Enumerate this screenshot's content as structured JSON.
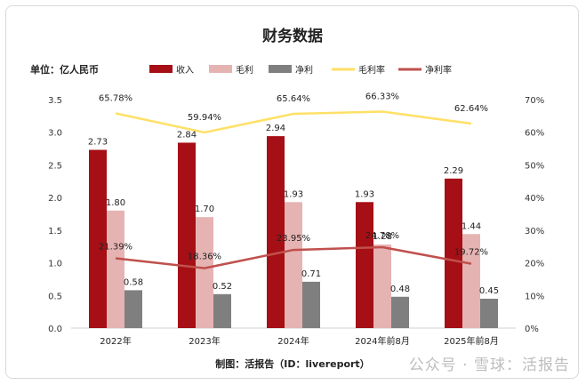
{
  "chart_data": {
    "type": "bar",
    "title": "财务数据",
    "unit_label": "单位：亿人民币",
    "source_note": "制图：活报告（ID：livereport）",
    "categories": [
      "2022年",
      "2023年",
      "2024年",
      "2024年前8月",
      "2025年前8月"
    ],
    "left_axis": {
      "min": 0,
      "max": 3.5,
      "step": 0.5,
      "ticks": [
        "0.0",
        "0.5",
        "1.0",
        "1.5",
        "2.0",
        "2.5",
        "3.0",
        "3.5"
      ]
    },
    "right_axis": {
      "min": 0,
      "max": 70,
      "step": 10,
      "ticks": [
        "0%",
        "10%",
        "20%",
        "30%",
        "40%",
        "50%",
        "60%",
        "70%"
      ]
    },
    "series": [
      {
        "name": "收入",
        "kind": "bar",
        "axis": "left",
        "color": "#a50f15",
        "values": [
          2.73,
          2.84,
          2.94,
          1.93,
          2.29
        ],
        "labels": [
          "2.73",
          "2.84",
          "2.94",
          "1.93",
          "2.29"
        ]
      },
      {
        "name": "毛利",
        "kind": "bar",
        "axis": "left",
        "color": "#e6b3b3",
        "values": [
          1.8,
          1.7,
          1.93,
          1.28,
          1.44
        ],
        "labels": [
          "1.80",
          "1.70",
          "1.93",
          "1.28",
          "1.44"
        ]
      },
      {
        "name": "净利",
        "kind": "bar",
        "axis": "left",
        "color": "#7f7f7f",
        "values": [
          0.58,
          0.52,
          0.71,
          0.48,
          0.45
        ],
        "labels": [
          "0.58",
          "0.52",
          "0.71",
          "0.48",
          "0.45"
        ]
      },
      {
        "name": "毛利率",
        "kind": "line",
        "axis": "right",
        "color": "#ffe066",
        "values": [
          65.78,
          59.94,
          65.64,
          66.33,
          62.64
        ],
        "labels": [
          "65.78%",
          "59.94%",
          "65.64%",
          "66.33%",
          "62.64%"
        ]
      },
      {
        "name": "净利率",
        "kind": "line",
        "axis": "right",
        "color": "#c0504d",
        "values": [
          21.39,
          18.36,
          23.95,
          24.78,
          19.72
        ],
        "labels": [
          "21.39%",
          "18.36%",
          "23.95%",
          "24.78%",
          "19.72%"
        ]
      }
    ],
    "legend": "top",
    "grid": false
  },
  "watermark": "公众号 · 雪球：活报告"
}
